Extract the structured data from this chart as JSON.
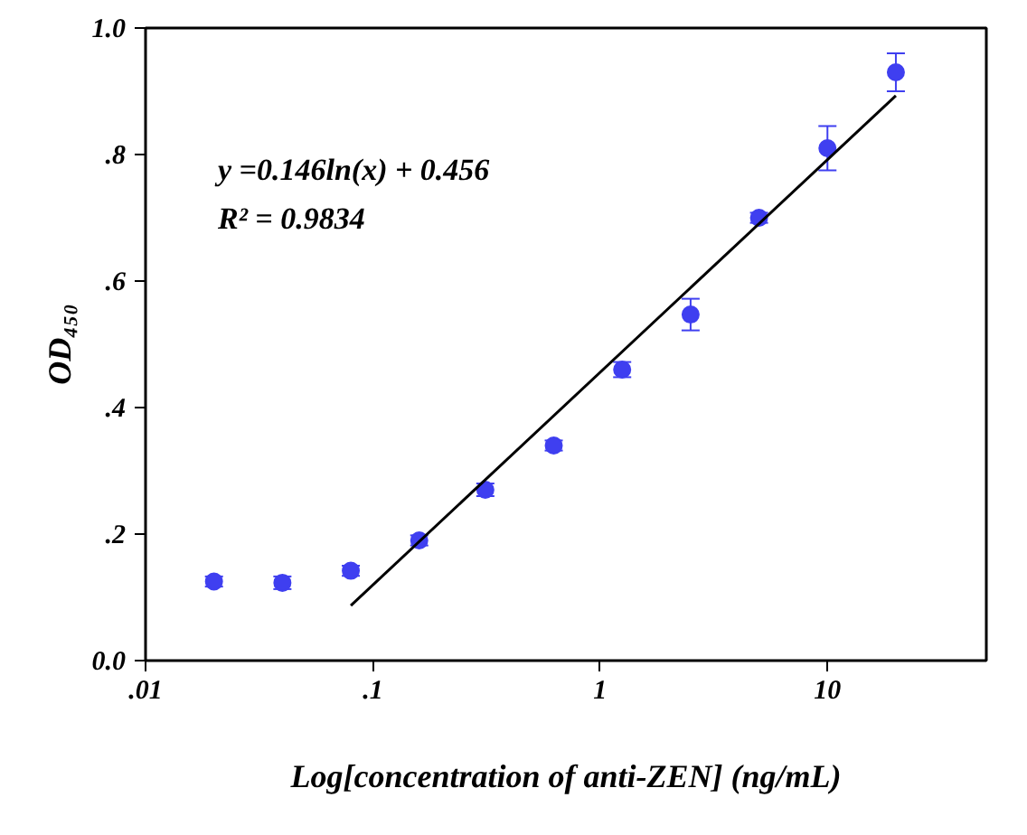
{
  "chart_data": {
    "type": "scatter",
    "xlabel": "Log[concentration of anti-ZEN] (ng/mL)",
    "ylabel": "OD₄₅₀",
    "log": "x",
    "grid": false,
    "marker": "circle",
    "xlim": [
      0.01,
      50
    ],
    "xticks": [
      {
        "value": 0.01,
        "label": ".01"
      },
      {
        "value": 0.1,
        "label": ".1"
      },
      1,
      10
    ],
    "ylim": [
      0,
      1.0
    ],
    "yticks": [
      {
        "value": 0,
        "label": "0.0"
      },
      {
        "value": 0.2,
        "label": ".2"
      },
      {
        "value": 0.4,
        "label": ".4"
      },
      {
        "value": 0.6,
        "label": ".6"
      },
      {
        "value": 0.8,
        "label": ".8"
      },
      {
        "value": 1.0,
        "label": "1.0"
      }
    ],
    "annotations": [
      "y =0.146ln(x) + 0.456",
      "R² = 0.9834"
    ],
    "series": [
      {
        "color": "#3f3ff0",
        "x": [
          0.02,
          0.04,
          0.08,
          0.16,
          0.3125,
          0.625,
          1.25,
          2.5,
          5,
          10,
          20
        ],
        "values": [
          0.125,
          0.123,
          0.142,
          0.19,
          0.27,
          0.34,
          0.46,
          0.547,
          0.7,
          0.81,
          0.93
        ],
        "errors": [
          0.008,
          0.01,
          0.008,
          0.008,
          0.01,
          0.008,
          0.012,
          0.025,
          0.008,
          0.035,
          0.03
        ]
      },
      {
        "type": "line",
        "marker": "none",
        "color": "#000000",
        "x": [
          0.08,
          20
        ],
        "values": [
          0.087,
          0.893
        ]
      }
    ]
  }
}
